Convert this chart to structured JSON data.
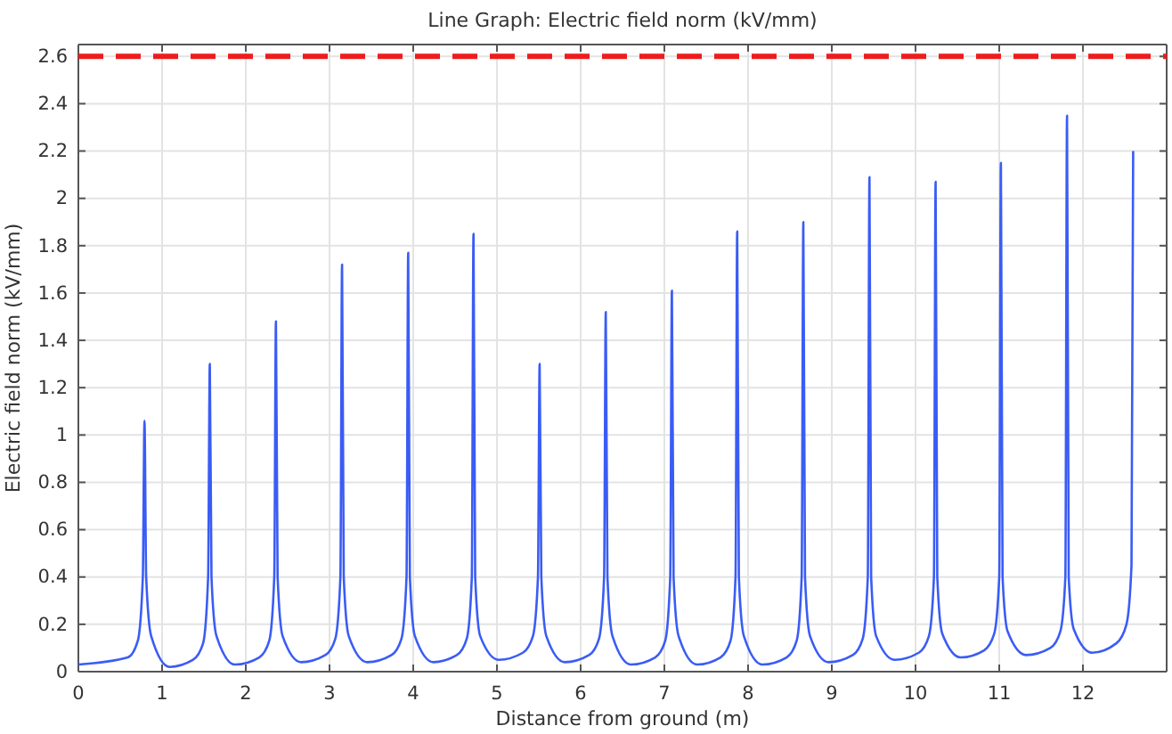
{
  "chart_data": {
    "type": "line",
    "title": "Line Graph: Electric field norm (kV/mm)",
    "xlabel": "Distance from ground (m)",
    "ylabel": "Electric field norm (kV/mm)",
    "xlim": [
      0,
      13
    ],
    "xticks": [
      0,
      1,
      2,
      3,
      4,
      5,
      6,
      7,
      8,
      9,
      10,
      11,
      12
    ],
    "ylim": [
      0,
      2.65
    ],
    "yticks": [
      0,
      0.2,
      0.4,
      0.6,
      0.8,
      1,
      1.2,
      1.4,
      1.6,
      1.8,
      2,
      2.2,
      2.4,
      2.6
    ],
    "grid": true,
    "line_style": "solid",
    "marker": "none",
    "ref_lines": [
      {
        "axis": "y",
        "value": 2.6,
        "color": "#ee1c1c",
        "line_style": "dashed"
      }
    ],
    "series": [
      {
        "color": "#3a5cf5",
        "x": [
          0,
          0.59,
          0.71,
          0.77,
          0.79,
          0.81,
          0.87,
          1.09,
          1.37,
          1.49,
          1.55,
          1.57,
          1.59,
          1.65,
          1.87,
          2.16,
          2.28,
          2.34,
          2.36,
          2.38,
          2.44,
          2.66,
          2.95,
          3.07,
          3.13,
          3.15,
          3.17,
          3.23,
          3.45,
          3.74,
          3.86,
          3.92,
          3.94,
          3.96,
          4.02,
          4.24,
          4.52,
          4.64,
          4.7,
          4.72,
          4.74,
          4.8,
          5.02,
          5.31,
          5.43,
          5.49,
          5.51,
          5.53,
          5.59,
          5.81,
          6.1,
          6.22,
          6.28,
          6.3,
          6.32,
          6.38,
          6.6,
          6.89,
          7.01,
          7.07,
          7.09,
          7.11,
          7.17,
          7.39,
          7.67,
          7.79,
          7.85,
          7.87,
          7.89,
          7.95,
          8.17,
          8.46,
          8.58,
          8.64,
          8.66,
          8.68,
          8.74,
          8.96,
          9.25,
          9.37,
          9.43,
          9.45,
          9.47,
          9.53,
          9.75,
          10.04,
          10.16,
          10.22,
          10.24,
          10.26,
          10.32,
          10.54,
          10.82,
          10.94,
          11.0,
          11.02,
          11.04,
          11.1,
          11.32,
          11.61,
          11.73,
          11.79,
          11.81,
          11.83,
          11.89,
          12.11,
          12.4,
          12.52,
          12.58,
          12.6
        ],
        "values": [
          0.03,
          0.06,
          0.13,
          0.4,
          1.06,
          0.4,
          0.15,
          0.02,
          0.05,
          0.12,
          0.4,
          1.3,
          0.4,
          0.15,
          0.03,
          0.06,
          0.13,
          0.4,
          1.48,
          0.4,
          0.15,
          0.04,
          0.07,
          0.14,
          0.4,
          1.72,
          0.4,
          0.15,
          0.04,
          0.07,
          0.14,
          0.4,
          1.77,
          0.4,
          0.15,
          0.04,
          0.07,
          0.14,
          0.4,
          1.85,
          0.4,
          0.15,
          0.05,
          0.08,
          0.15,
          0.4,
          1.3,
          0.4,
          0.15,
          0.04,
          0.07,
          0.14,
          0.4,
          1.52,
          0.4,
          0.15,
          0.03,
          0.06,
          0.13,
          0.4,
          1.61,
          0.4,
          0.15,
          0.03,
          0.06,
          0.13,
          0.4,
          1.86,
          0.4,
          0.15,
          0.03,
          0.06,
          0.13,
          0.4,
          1.9,
          0.4,
          0.15,
          0.04,
          0.07,
          0.14,
          0.4,
          2.09,
          0.4,
          0.15,
          0.05,
          0.08,
          0.15,
          0.4,
          2.07,
          0.4,
          0.16,
          0.06,
          0.09,
          0.16,
          0.4,
          2.15,
          0.4,
          0.17,
          0.07,
          0.1,
          0.17,
          0.4,
          2.35,
          0.4,
          0.18,
          0.08,
          0.12,
          0.2,
          0.45,
          2.2
        ]
      }
    ]
  }
}
